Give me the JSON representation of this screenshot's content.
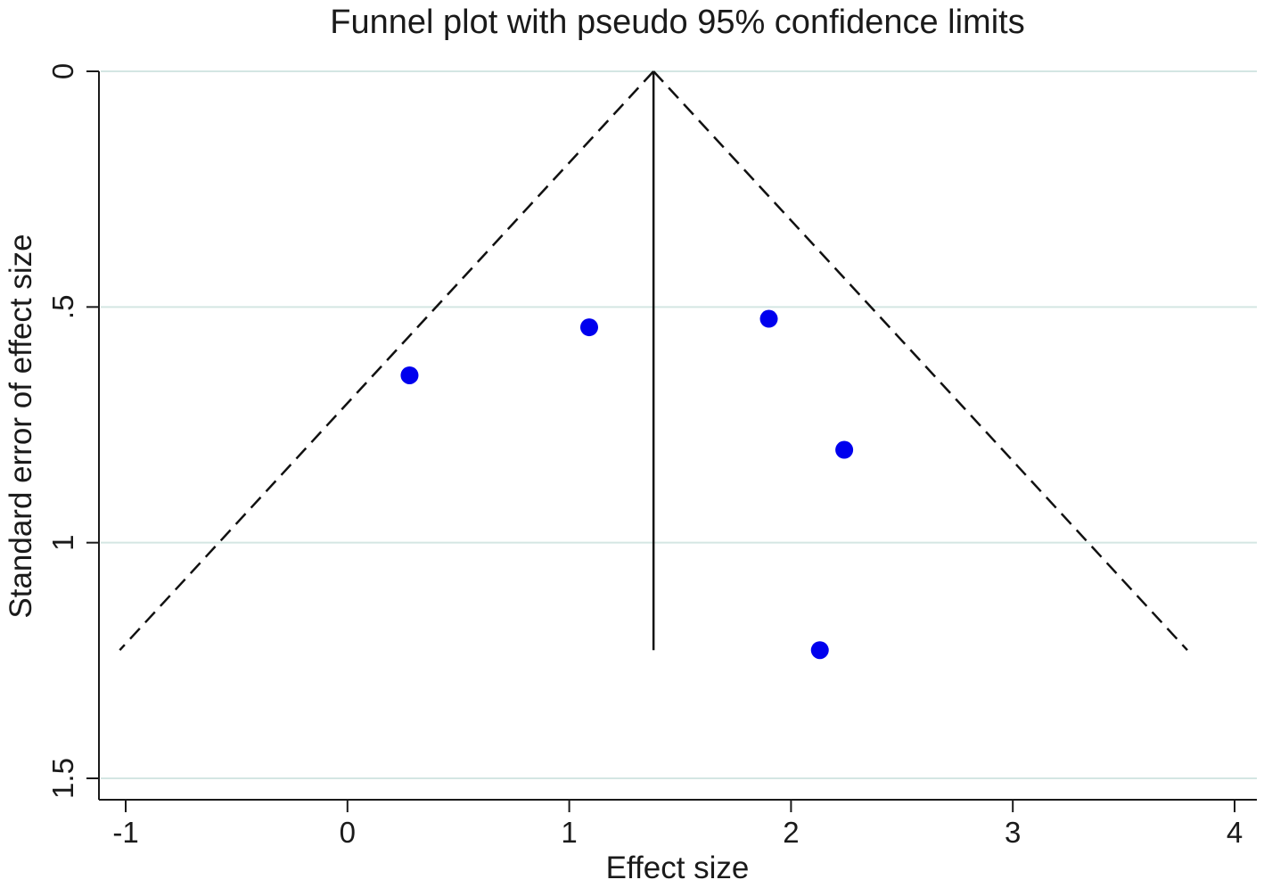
{
  "chart_data": {
    "type": "scatter",
    "title": "Funnel plot with pseudo 95% confidence limits",
    "xlabel": "Effect size",
    "ylabel": "Standard error of effect size",
    "xlim": [
      -1.1,
      4.1
    ],
    "ylim": [
      0,
      1.55
    ],
    "y_reversed": true,
    "xticks": [
      -1,
      0,
      1,
      2,
      3,
      4
    ],
    "xtick_labels": [
      "-1",
      "0",
      "1",
      "2",
      "3",
      "4"
    ],
    "yticks": [
      0,
      0.5,
      1,
      1.5
    ],
    "ytick_labels": [
      "0",
      ".5",
      "1",
      "1.5"
    ],
    "grid": "horizontal",
    "points": [
      {
        "x": 0.28,
        "y": 0.645
      },
      {
        "x": 1.09,
        "y": 0.543
      },
      {
        "x": 1.9,
        "y": 0.525
      },
      {
        "x": 2.24,
        "y": 0.803
      },
      {
        "x": 2.13,
        "y": 1.228
      }
    ],
    "pooled_effect": 1.38,
    "se_max": 1.228,
    "confidence_z": 1.96,
    "colors": {
      "points": "#0000ee",
      "lines": "#111111",
      "grid": "#d4e6e3"
    }
  }
}
